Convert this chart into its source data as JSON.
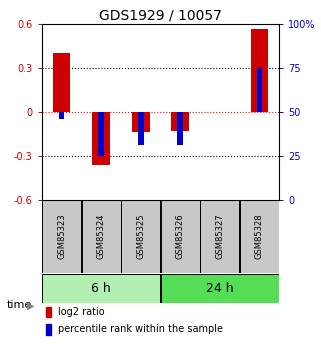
{
  "title": "GDS1929 / 10057",
  "samples": [
    "GSM85323",
    "GSM85324",
    "GSM85325",
    "GSM85326",
    "GSM85327",
    "GSM85328"
  ],
  "log2_ratio": [
    0.4,
    -0.36,
    -0.14,
    -0.13,
    0.0,
    0.57
  ],
  "percentile_rank": [
    46,
    25,
    31,
    31,
    50,
    75
  ],
  "ylim_left": [
    -0.6,
    0.6
  ],
  "ylim_right": [
    0,
    100
  ],
  "yticks_left": [
    -0.6,
    -0.3,
    0.0,
    0.3,
    0.6
  ],
  "yticks_right": [
    0,
    25,
    50,
    75,
    100
  ],
  "ytick_labels_left": [
    "-0.6",
    "-0.3",
    "0",
    "0.3",
    "0.6"
  ],
  "ytick_labels_right": [
    "0",
    "25",
    "50",
    "75",
    "100%"
  ],
  "red_color": "#cc0000",
  "blue_color": "#0000cc",
  "group1_label": "6 h",
  "group2_label": "24 h",
  "group1_indices": [
    0,
    1,
    2
  ],
  "group2_indices": [
    3,
    4,
    5
  ],
  "light_green": "#b2f0b2",
  "dark_green": "#55dd55",
  "gray_box": "#c8c8c8",
  "legend_red": "log2 ratio",
  "legend_blue": "percentile rank within the sample",
  "time_label": "time",
  "title_fontsize": 10,
  "tick_fontsize": 7,
  "sample_fontsize": 6,
  "legend_fontsize": 7,
  "group_fontsize": 9
}
